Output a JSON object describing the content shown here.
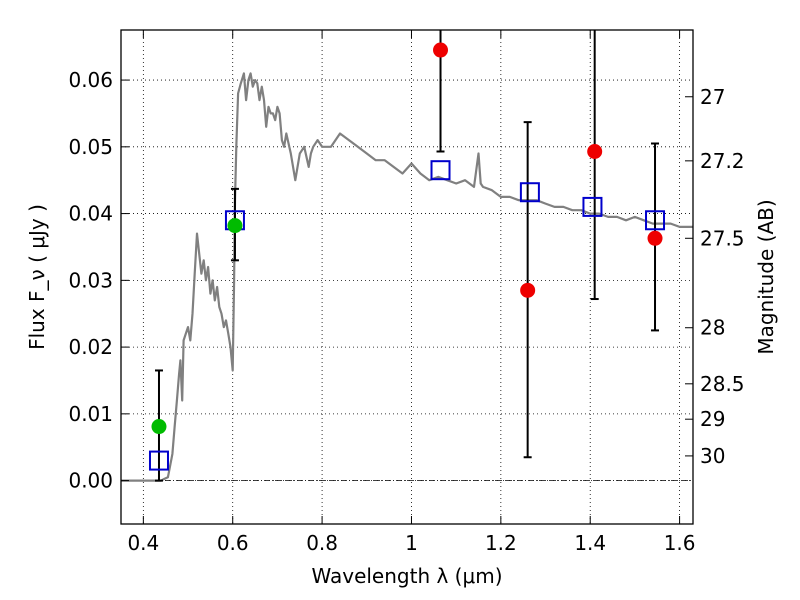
{
  "chart_data": {
    "type": "scatter",
    "title": "",
    "xlabel": "Wavelength  λ (μm)",
    "ylabel": "Flux  F_ν ( μJy )",
    "ylabel_right": "Magnitude (AB)",
    "xlim": [
      0.35,
      1.63
    ],
    "ylim": [
      -0.0065,
      0.0675
    ],
    "grid": true,
    "x_ticks": [
      0.4,
      0.6,
      0.8,
      1.0,
      1.2,
      1.4,
      1.6
    ],
    "x_tick_labels": [
      "0.4",
      "0.6",
      "0.8",
      "1",
      "1.2",
      "1.4",
      "1.6"
    ],
    "y_ticks": [
      0.0,
      0.01,
      0.02,
      0.03,
      0.04,
      0.05,
      0.06
    ],
    "y_tick_labels": [
      "0.00",
      "0.01",
      "0.02",
      "0.03",
      "0.04",
      "0.05",
      "0.06"
    ],
    "right_ticks": [
      {
        "label": "27",
        "flux": 0.0575
      },
      {
        "label": "27.2",
        "flux": 0.0479
      },
      {
        "label": "27.5",
        "flux": 0.0363
      },
      {
        "label": "28",
        "flux": 0.0229
      },
      {
        "label": "28.5",
        "flux": 0.0145
      },
      {
        "label": "29",
        "flux": 0.0092
      },
      {
        "label": "30",
        "flux": 0.0037
      }
    ],
    "series": [
      {
        "kind": "model_spectrum",
        "color": "#808080",
        "x": [
          0.35,
          0.37,
          0.39,
          0.41,
          0.43,
          0.44,
          0.445,
          0.455,
          0.465,
          0.47,
          0.475,
          0.48,
          0.483,
          0.487,
          0.49,
          0.495,
          0.5,
          0.505,
          0.51,
          0.515,
          0.52,
          0.525,
          0.53,
          0.535,
          0.54,
          0.545,
          0.55,
          0.555,
          0.56,
          0.565,
          0.57,
          0.575,
          0.58,
          0.585,
          0.59,
          0.595,
          0.6,
          0.603,
          0.605,
          0.608,
          0.612,
          0.618,
          0.625,
          0.63,
          0.635,
          0.64,
          0.645,
          0.65,
          0.655,
          0.66,
          0.665,
          0.67,
          0.675,
          0.68,
          0.685,
          0.69,
          0.695,
          0.7,
          0.705,
          0.71,
          0.715,
          0.72,
          0.73,
          0.74,
          0.75,
          0.76,
          0.77,
          0.775,
          0.78,
          0.79,
          0.8,
          0.82,
          0.84,
          0.86,
          0.88,
          0.9,
          0.92,
          0.94,
          0.96,
          0.98,
          1.0,
          1.02,
          1.04,
          1.06,
          1.08,
          1.1,
          1.12,
          1.14,
          1.15,
          1.155,
          1.16,
          1.18,
          1.2,
          1.22,
          1.24,
          1.26,
          1.28,
          1.3,
          1.32,
          1.34,
          1.36,
          1.38,
          1.4,
          1.42,
          1.44,
          1.46,
          1.48,
          1.5,
          1.52,
          1.54,
          1.56,
          1.58,
          1.6,
          1.62,
          1.63
        ],
        "y": [
          0.0,
          0.0,
          0.0,
          0.0,
          0.0,
          0.0,
          0.0002,
          0.0005,
          0.004,
          0.008,
          0.012,
          0.016,
          0.018,
          0.012,
          0.021,
          0.022,
          0.023,
          0.021,
          0.025,
          0.031,
          0.037,
          0.034,
          0.031,
          0.033,
          0.03,
          0.032,
          0.028,
          0.03,
          0.027,
          0.029,
          0.026,
          0.025,
          0.023,
          0.024,
          0.022,
          0.02,
          0.0165,
          0.03,
          0.042,
          0.05,
          0.058,
          0.0595,
          0.061,
          0.057,
          0.06,
          0.061,
          0.059,
          0.06,
          0.0595,
          0.057,
          0.059,
          0.057,
          0.053,
          0.056,
          0.055,
          0.055,
          0.054,
          0.056,
          0.055,
          0.051,
          0.05,
          0.052,
          0.049,
          0.045,
          0.049,
          0.05,
          0.047,
          0.049,
          0.05,
          0.051,
          0.05,
          0.05,
          0.052,
          0.051,
          0.05,
          0.049,
          0.048,
          0.048,
          0.047,
          0.046,
          0.0475,
          0.046,
          0.045,
          0.0455,
          0.045,
          0.0445,
          0.045,
          0.044,
          0.049,
          0.0445,
          0.044,
          0.0435,
          0.0425,
          0.0425,
          0.042,
          0.042,
          0.042,
          0.0415,
          0.041,
          0.041,
          0.0405,
          0.0405,
          0.04,
          0.04,
          0.0395,
          0.0395,
          0.039,
          0.0395,
          0.039,
          0.0385,
          0.0385,
          0.0385,
          0.038,
          0.038,
          0.038
        ]
      },
      {
        "kind": "model_photometry",
        "marker": "open-square",
        "color": "#0000cc",
        "x": [
          0.435,
          0.605,
          1.065,
          1.265,
          1.405,
          1.545
        ],
        "values": [
          0.003,
          0.039,
          0.0465,
          0.0432,
          0.041,
          0.039
        ]
      },
      {
        "kind": "observed_photometry",
        "marker": "filled-circle",
        "x": [
          0.435,
          0.605,
          1.065,
          1.26,
          1.41,
          1.545
        ],
        "values": [
          0.0081,
          0.0382,
          0.0645,
          0.0285,
          0.0493,
          0.0363
        ],
        "colors": [
          "#00bb00",
          "#00bb00",
          "#ee0000",
          "#ee0000",
          "#ee0000",
          "#ee0000"
        ],
        "error_low": [
          0.0,
          0.033,
          0.0493,
          0.0035,
          0.0272,
          0.0225
        ],
        "error_high": [
          0.0165,
          0.0437,
          0.0675,
          0.0537,
          0.0675,
          0.0505
        ]
      }
    ]
  }
}
